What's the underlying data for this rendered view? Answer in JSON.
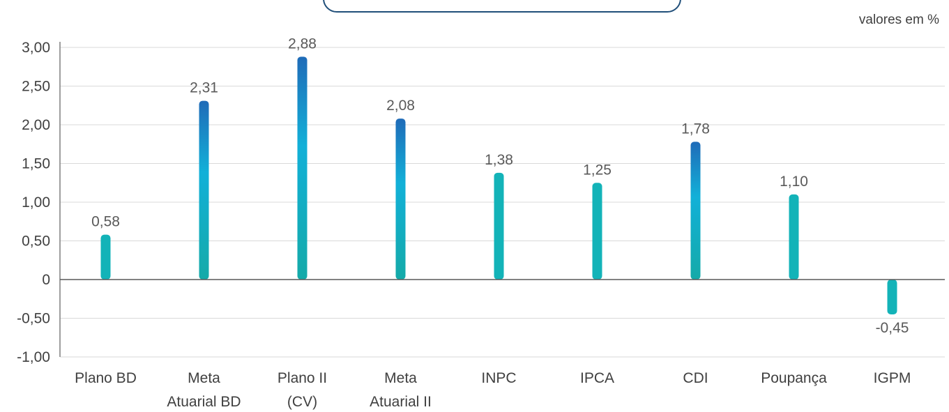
{
  "unit_note": "valores em %",
  "colors": {
    "bar_top_dark": "#1f6bb8",
    "bar_mid": "#12b0d8",
    "bar_bottom": "#14aaa8",
    "bar_short": "#13b3b8",
    "grid": "#d9d9d9",
    "axis": "#7f7f7f"
  },
  "chart_data": {
    "type": "bar",
    "title": "",
    "xlabel": "",
    "ylabel": "",
    "ylim": [
      -1.0,
      3.0
    ],
    "yticks": [
      "3,00",
      "2,50",
      "2,00",
      "1,50",
      "1,00",
      "0,50",
      "0",
      "-0,50",
      "-1,00"
    ],
    "ytick_values": [
      3.0,
      2.5,
      2.0,
      1.5,
      1.0,
      0.5,
      0,
      -0.5,
      -1.0
    ],
    "grid": true,
    "categories": [
      [
        "Plano BD"
      ],
      [
        "Meta",
        "Atuarial BD"
      ],
      [
        "Plano II",
        "(CV)"
      ],
      [
        "Meta",
        "Atuarial II"
      ],
      [
        "INPC"
      ],
      [
        "IPCA"
      ],
      [
        "CDI"
      ],
      [
        "Poupança"
      ],
      [
        "IGPM"
      ]
    ],
    "values": [
      0.58,
      2.31,
      2.88,
      2.08,
      1.38,
      1.25,
      1.78,
      1.1,
      -0.45
    ],
    "value_labels": [
      "0,58",
      "2,31",
      "2,88",
      "2,08",
      "1,38",
      "1,25",
      "1,78",
      "1,10",
      "-0,45"
    ]
  }
}
